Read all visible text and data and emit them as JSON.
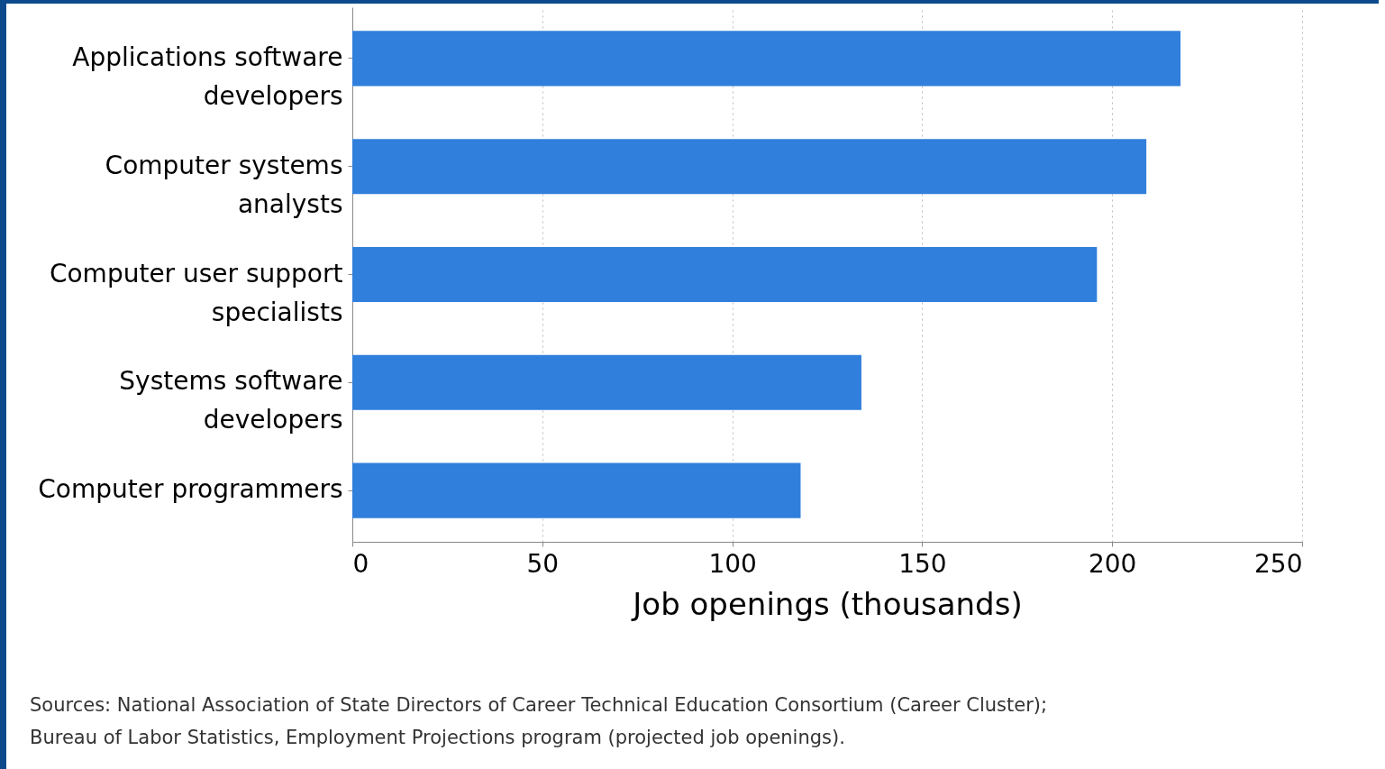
{
  "chart_data": {
    "type": "bar",
    "orientation": "horizontal",
    "categories": [
      "Applications software developers",
      "Computer systems analysts",
      "Computer user support specialists",
      "Systems software developers",
      "Computer programmers"
    ],
    "values": [
      218,
      209,
      196,
      134,
      118
    ],
    "color": "#307fdc",
    "xlabel": "Job openings (thousands)",
    "xlim": [
      0,
      250
    ],
    "xticks": [
      0,
      50,
      100,
      150,
      200,
      250
    ],
    "grid": "x",
    "annotations": [
      "Sources: National Association of State Directors of Career Technical Education Consortium (Career Cluster);",
      "Bureau of Labor Statistics, Employment Projections program (projected job openings)."
    ]
  }
}
